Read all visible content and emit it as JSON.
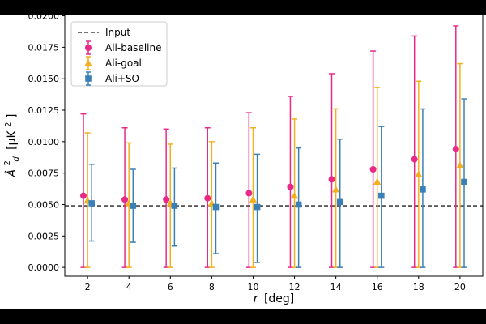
{
  "chart_data": {
    "type": "scatter",
    "title": "",
    "xlabel": "r [deg]",
    "xlabel_var": "r",
    "xlabel_unit": "[deg]",
    "ylabel": "Â²_d [μK²]",
    "ylabel_var": "Â",
    "ylabel_sup": "2",
    "ylabel_sub": "d",
    "ylabel_unit": "[μK",
    "ylabel_unit_sup": "2",
    "ylabel_unit_end": "]",
    "xlim": [
      0.9,
      21.1
    ],
    "ylim": [
      -0.0007,
      0.0201
    ],
    "xticks": [
      2,
      4,
      6,
      8,
      10,
      12,
      14,
      16,
      18,
      20
    ],
    "xtick_labels": [
      "2",
      "4",
      "6",
      "8",
      "10",
      "12",
      "14",
      "16",
      "18",
      "20"
    ],
    "yticks": [
      0.0,
      0.0025,
      0.005,
      0.0075,
      0.01,
      0.0125,
      0.015,
      0.0175,
      0.02
    ],
    "ytick_labels": [
      "0.0000",
      "0.0025",
      "0.0050",
      "0.0075",
      "0.0100",
      "0.0125",
      "0.0150",
      "0.0175",
      "0.0200"
    ],
    "grid": false,
    "legend_position": "top-left",
    "reference_line": {
      "name": "Input",
      "y": 0.0049,
      "style": "dashed",
      "color": "#222222"
    },
    "series": [
      {
        "name": "Ali-baseline",
        "marker": "circle",
        "color": "#e7298a",
        "x_offset": -0.2,
        "x": [
          2,
          4,
          6,
          8,
          10,
          12,
          14,
          16,
          18,
          20
        ],
        "y": [
          0.0057,
          0.0054,
          0.0054,
          0.0055,
          0.0059,
          0.0064,
          0.007,
          0.0078,
          0.0086,
          0.0094
        ],
        "y_low": [
          0.0,
          0.0,
          0.0,
          0.0,
          0.0,
          0.0,
          0.0,
          0.0,
          0.0,
          0.0
        ],
        "y_high": [
          0.0122,
          0.0111,
          0.011,
          0.0111,
          0.0123,
          0.0136,
          0.0154,
          0.0172,
          0.0184,
          0.0192
        ]
      },
      {
        "name": "Ali-goal",
        "marker": "triangle",
        "color": "#f2b01e",
        "x_offset": 0.0,
        "x": [
          2,
          4,
          6,
          8,
          10,
          12,
          14,
          16,
          18,
          20
        ],
        "y": [
          0.0053,
          0.0051,
          0.0051,
          0.0051,
          0.0054,
          0.0057,
          0.0062,
          0.0068,
          0.0074,
          0.0081
        ],
        "y_low": [
          0.0,
          0.0,
          0.0,
          0.0,
          0.0,
          0.0,
          0.0,
          0.0,
          0.0,
          0.0
        ],
        "y_high": [
          0.0107,
          0.0099,
          0.0098,
          0.01,
          0.0111,
          0.0118,
          0.0126,
          0.0143,
          0.0148,
          0.0162
        ]
      },
      {
        "name": "Ali+SO",
        "marker": "square",
        "color": "#3a80b8",
        "x_offset": 0.2,
        "x": [
          2,
          4,
          6,
          8,
          10,
          12,
          14,
          16,
          18,
          20
        ],
        "y": [
          0.0051,
          0.0049,
          0.0049,
          0.0048,
          0.0048,
          0.005,
          0.0052,
          0.0057,
          0.0062,
          0.0068
        ],
        "y_low": [
          0.0021,
          0.002,
          0.0017,
          0.0011,
          0.0004,
          0.0,
          0.0,
          0.0,
          0.0,
          0.0
        ],
        "y_high": [
          0.0082,
          0.0078,
          0.0079,
          0.0083,
          0.009,
          0.0095,
          0.0102,
          0.0112,
          0.0126,
          0.0134
        ]
      }
    ]
  }
}
